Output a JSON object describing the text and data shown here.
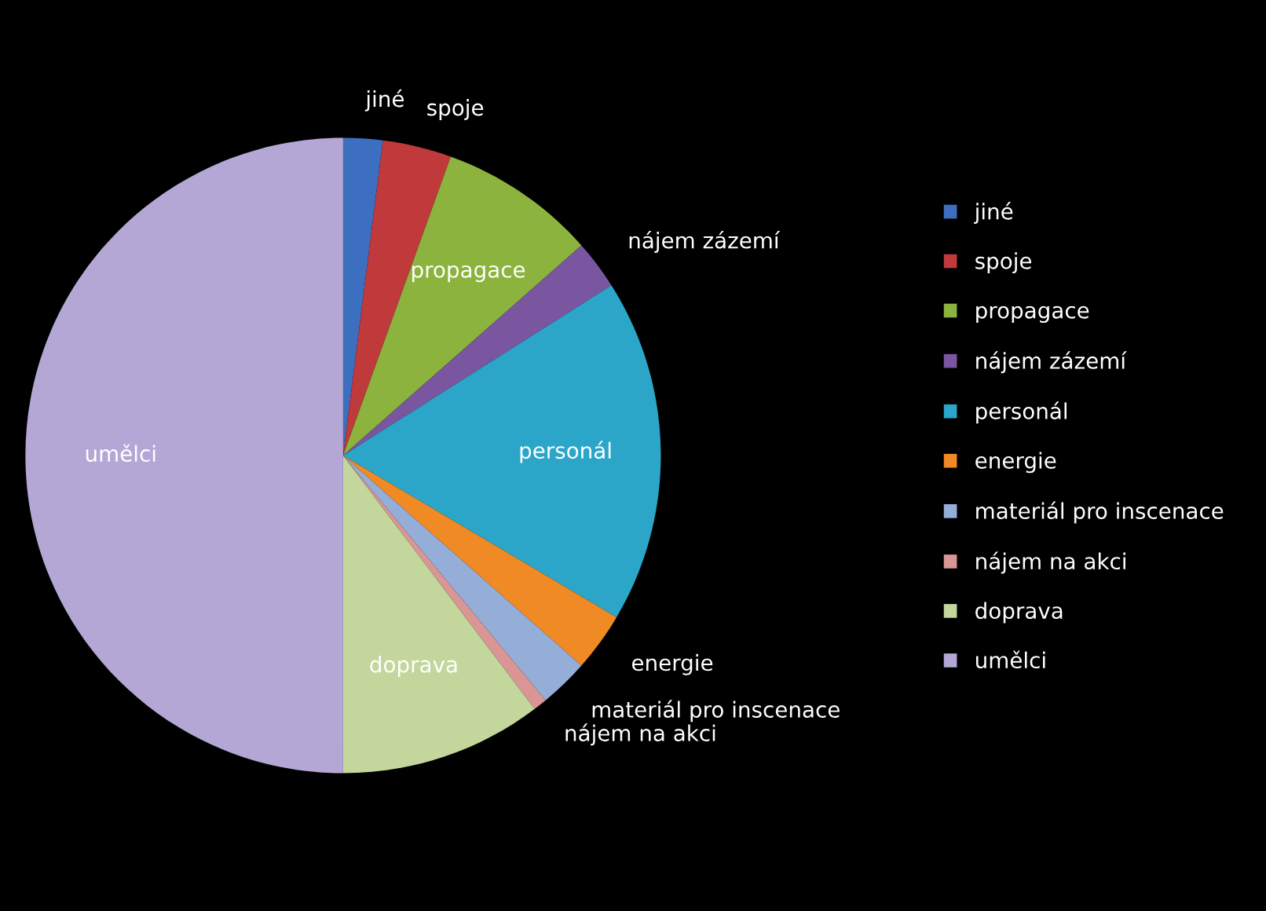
{
  "chart_data": {
    "type": "pie",
    "categories": [
      "jiné",
      "spoje",
      "propagace",
      "nájem zázemí",
      "personál",
      "energie",
      "materiál pro inscenace",
      "nájem na akci",
      "doprava",
      "umělci"
    ],
    "values": [
      2,
      3.5,
      8,
      2.5,
      17.5,
      3,
      2.5,
      0.7,
      10.3,
      50
    ],
    "colors": [
      "#3d6fc0",
      "#c0393b",
      "#8cb33e",
      "#7a56a0",
      "#2ca6c8",
      "#f08a24",
      "#95aed8",
      "#d99694",
      "#c3d69b",
      "#b4a7d6"
    ],
    "data_labels": false,
    "legend": "right"
  }
}
